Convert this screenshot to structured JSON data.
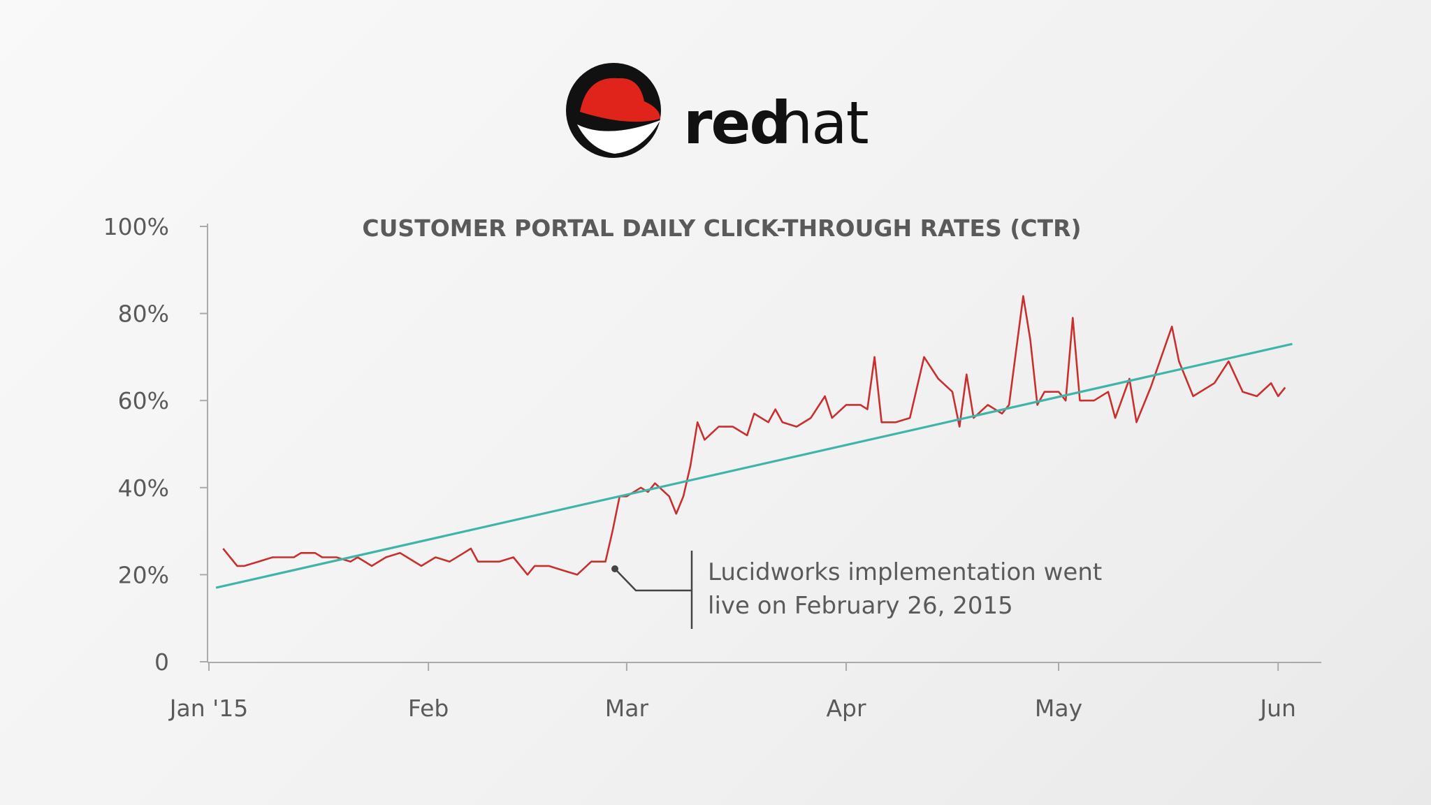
{
  "logo": {
    "text_bold": "red",
    "text_light": "hat"
  },
  "chart_data": {
    "type": "line",
    "title": "CUSTOMER PORTAL DAILY CLICK-THROUGH RATES (CTR)",
    "annotation": [
      "Lucidworks implementation went",
      "live on February 26, 2015"
    ],
    "xlim": [
      0,
      157
    ],
    "xticks": [
      {
        "value": 0,
        "label": "Jan '15"
      },
      {
        "value": 31,
        "label": "Feb"
      },
      {
        "value": 59,
        "label": "Mar"
      },
      {
        "value": 90,
        "label": "Apr"
      },
      {
        "value": 120,
        "label": "May"
      },
      {
        "value": 151,
        "label": "Jun"
      }
    ],
    "ylim": [
      0,
      100
    ],
    "yticks": [
      0,
      {
        "value": 20,
        "label": "20%"
      },
      {
        "value": 40,
        "label": "40%"
      },
      {
        "value": 60,
        "label": "60%"
      },
      {
        "value": 80,
        "label": "80%"
      },
      {
        "value": 100,
        "label": "100%"
      }
    ],
    "series": [
      {
        "color": "#c8302f",
        "x": [
          2,
          3,
          4,
          5,
          7,
          9,
          11,
          12,
          13,
          15,
          16,
          18,
          20,
          21,
          23,
          25,
          27,
          28,
          30,
          32,
          34,
          36,
          37,
          38,
          41,
          43,
          45,
          46,
          48,
          50,
          52,
          54,
          56,
          57,
          58,
          59,
          61,
          62,
          63,
          65,
          66,
          67,
          68,
          69,
          70,
          72,
          74,
          76,
          77,
          79,
          80,
          81,
          83,
          85,
          87,
          88,
          90,
          92,
          93,
          94,
          95,
          97,
          99,
          101,
          103,
          105,
          106,
          107,
          108,
          110,
          112,
          113,
          115,
          116,
          117,
          118,
          120,
          121,
          122,
          123,
          125,
          127,
          128,
          130,
          131,
          133,
          136,
          137,
          139,
          142,
          144,
          146,
          148,
          150,
          151,
          152
        ],
        "values": [
          26,
          24,
          22,
          22,
          23,
          24,
          24,
          24,
          25,
          25,
          24,
          24,
          23,
          24,
          22,
          24,
          25,
          24,
          22,
          24,
          23,
          25,
          26,
          23,
          23,
          24,
          20,
          22,
          22,
          21,
          20,
          23,
          23,
          30,
          38,
          38,
          40,
          39,
          41,
          38,
          34,
          38,
          45,
          55,
          51,
          54,
          54,
          52,
          57,
          55,
          58,
          55,
          54,
          56,
          61,
          56,
          59,
          59,
          58,
          70,
          55,
          55,
          56,
          70,
          65,
          62,
          54,
          66,
          56,
          59,
          57,
          59,
          84,
          74,
          59,
          62,
          62,
          60,
          79,
          60,
          60,
          62,
          56,
          65,
          55,
          63,
          77,
          69,
          61,
          64,
          69,
          62,
          61,
          64,
          61,
          63
        ]
      },
      {
        "color": "#3fb5a9",
        "x": [
          1,
          153
        ],
        "values": [
          17,
          73
        ]
      }
    ]
  }
}
